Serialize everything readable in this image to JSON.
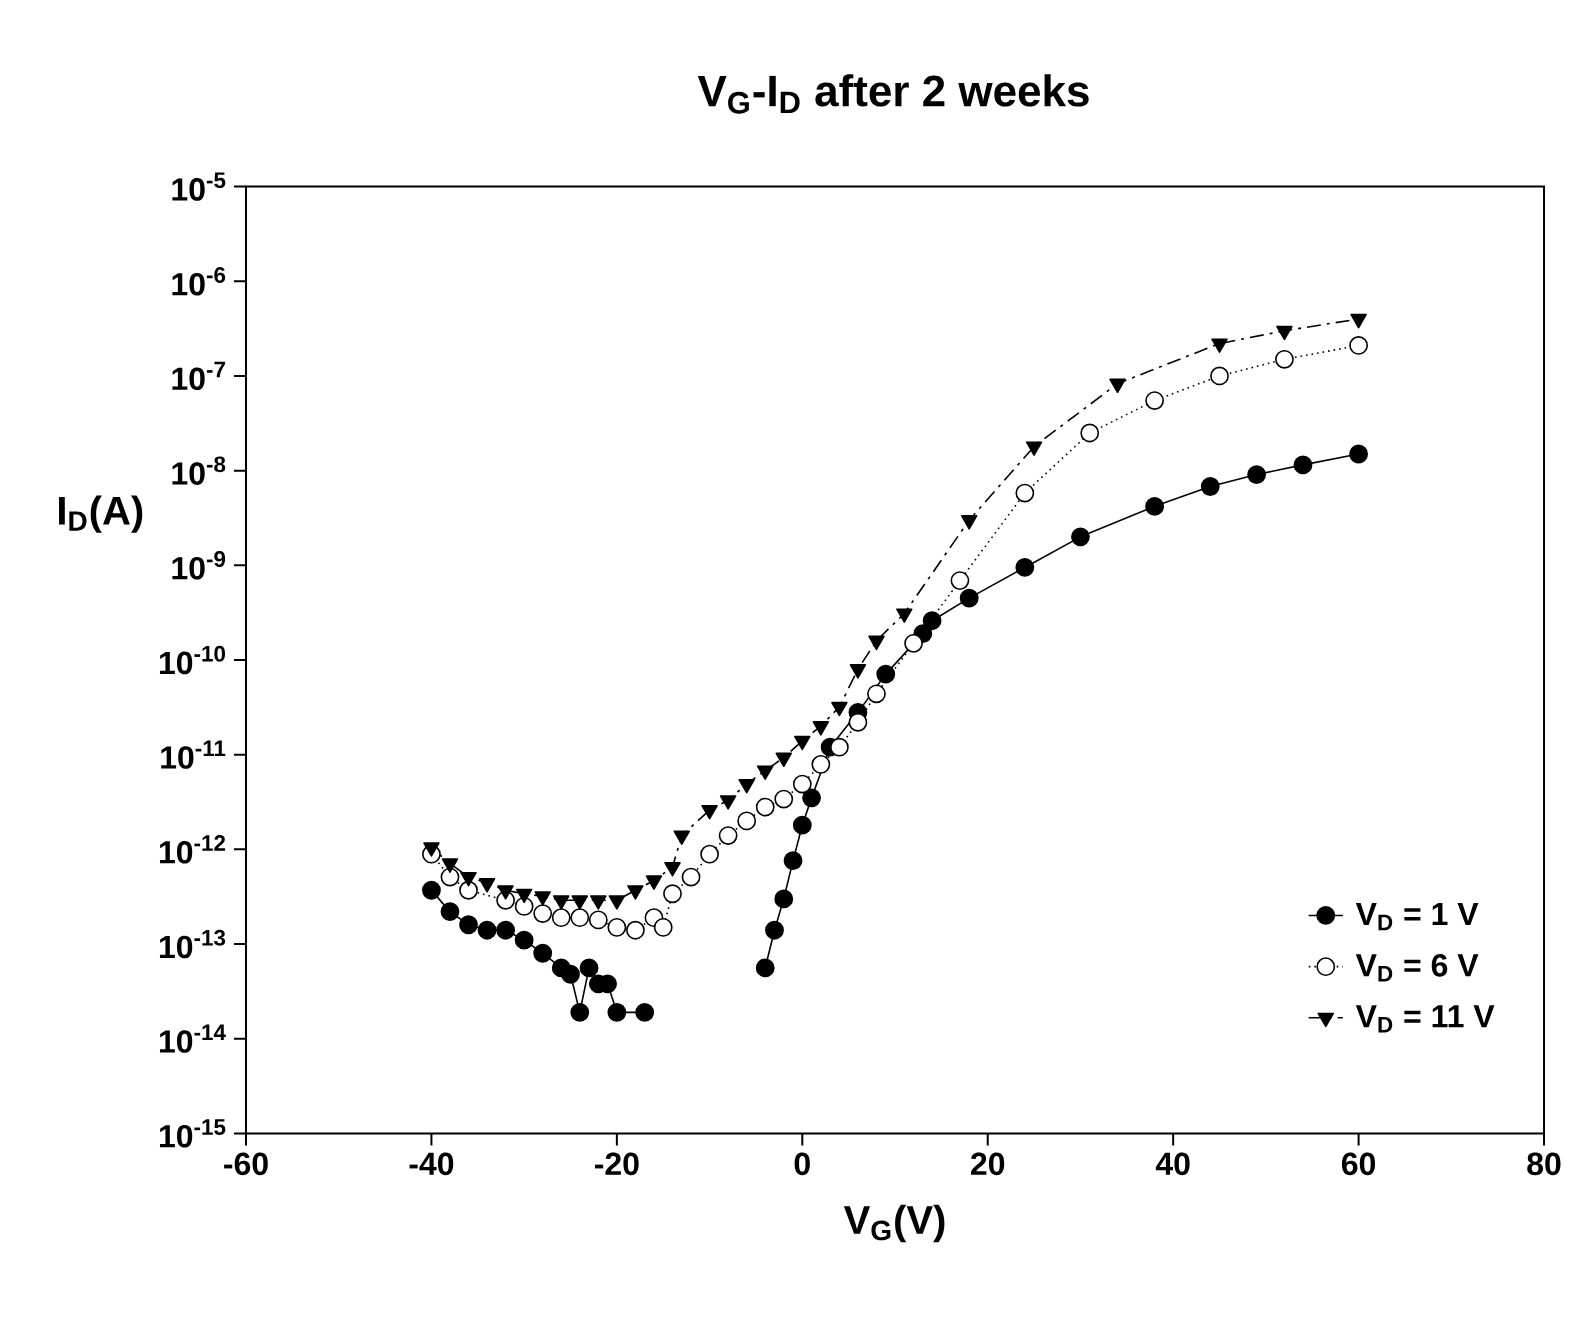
{
  "chart_data": {
    "type": "line",
    "title": "V$_{G}$-I$_{D}$ after 2 weeks",
    "xlabel": "V$_{G}$(V)",
    "ylabel": "I$_{D}$(A)",
    "log": "y",
    "legend": "bottom right",
    "xlim": [
      -60,
      80
    ],
    "xticks": [
      -60,
      -40,
      -20,
      0,
      20,
      40,
      60,
      80
    ],
    "ylim": [
      1e-15,
      1e-05
    ],
    "yticks": [
      {
        "value": 1e-15,
        "label": "10$^{-15}$"
      },
      {
        "value": 1e-14,
        "label": "10$^{-14}$"
      },
      {
        "value": 1e-13,
        "label": "10$^{-13}$"
      },
      {
        "value": 1e-12,
        "label": "10$^{-12}$"
      },
      {
        "value": 1e-11,
        "label": "10$^{-11}$"
      },
      {
        "value": 1e-10,
        "label": "10$^{-10}$"
      },
      {
        "value": 1e-09,
        "label": "10$^{-9}$"
      },
      {
        "value": 1e-08,
        "label": "10$^{-8}$"
      },
      {
        "value": 1e-07,
        "label": "10$^{-7}$"
      },
      {
        "value": 1e-06,
        "label": "10$^{-6}$"
      },
      {
        "value": 1e-05,
        "label": "10$^{-5}$"
      }
    ],
    "series": [
      {
        "name": "V$_{D}$ = 1 V",
        "color": "#000000",
        "marker": "circle",
        "line_style": "solid",
        "x": [
          -40,
          -38,
          -36,
          -34,
          -32,
          -30,
          -28,
          -26,
          -25,
          -24,
          -23,
          -22,
          -21,
          -20,
          -17,
          -10,
          -4,
          -3,
          -2,
          -1,
          0,
          1,
          3,
          6,
          9,
          13,
          14,
          18,
          24,
          30,
          38,
          44,
          49,
          54,
          60
        ],
        "values": [
          3.7e-13,
          2.2e-13,
          1.6e-13,
          1.4e-13,
          1.4e-13,
          1.1e-13,
          8e-14,
          5.6e-14,
          4.8e-14,
          1.9e-14,
          5.6e-14,
          3.8e-14,
          3.8e-14,
          1.9e-14,
          1.9e-14,
          null,
          5.6e-14,
          1.4e-13,
          3e-13,
          7.6e-13,
          1.8e-12,
          3.5e-12,
          1.2e-11,
          2.8e-11,
          7.1e-11,
          1.9e-10,
          2.6e-10,
          4.5e-10,
          9.5e-10,
          2e-09,
          4.2e-09,
          6.8e-09,
          9.1e-09,
          1.15e-08,
          1.5e-08
        ]
      },
      {
        "name": "V$_{D}$ = 6 V",
        "color": "#ffffff",
        "marker": "circle",
        "line_style": "dotted",
        "x": [
          -40,
          -38,
          -36,
          -32,
          -30,
          -28,
          -26,
          -24,
          -22,
          -20,
          -18,
          -16,
          -15,
          -14,
          -12,
          -10,
          -8,
          -6,
          -4,
          -2,
          0,
          2,
          4,
          6,
          8,
          12,
          17,
          24,
          31,
          38,
          45,
          52,
          60
        ],
        "values": [
          8.9e-13,
          5.1e-13,
          3.7e-13,
          2.9e-13,
          2.5e-13,
          2.1e-13,
          1.9e-13,
          1.9e-13,
          1.8e-13,
          1.5e-13,
          1.4e-13,
          1.9e-13,
          1.5e-13,
          3.4e-13,
          5.1e-13,
          8.9e-13,
          1.4e-12,
          2e-12,
          2.8e-12,
          3.4e-12,
          4.9e-12,
          7.9e-12,
          1.2e-11,
          2.2e-11,
          4.4e-11,
          1.5e-10,
          6.9e-10,
          5.8e-09,
          2.5e-08,
          5.5e-08,
          1e-07,
          1.5e-07,
          2.1e-07
        ]
      },
      {
        "name": "V$_{D}$ = 11 V",
        "color": "#000000",
        "marker": "triangle",
        "line_style": "dashed",
        "x": [
          -40,
          -38,
          -36,
          -34,
          -32,
          -30,
          -28,
          -26,
          -24,
          -22,
          -20,
          -18,
          -16,
          -14,
          -13,
          -10,
          -8,
          -6,
          -4,
          -2,
          0,
          2,
          4,
          6,
          8,
          11,
          18,
          25,
          34,
          45,
          52,
          60
        ],
        "values": [
          1.05e-12,
          7.1e-13,
          5.1e-13,
          4.4e-13,
          3.7e-13,
          3.4e-13,
          3.2e-13,
          2.9e-13,
          2.9e-13,
          2.9e-13,
          2.9e-13,
          3.7e-13,
          4.7e-13,
          6.5e-13,
          1.4e-12,
          2.6e-12,
          3.3e-12,
          4.9e-12,
          6.8e-12,
          9.3e-12,
          1.4e-11,
          2e-11,
          3.2e-11,
          8e-11,
          1.6e-10,
          3.1e-10,
          3e-09,
          1.8e-08,
          8.3e-08,
          2.2e-07,
          3e-07,
          4e-07
        ]
      }
    ]
  }
}
